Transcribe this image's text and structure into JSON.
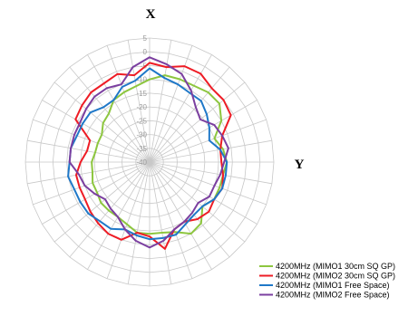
{
  "chart_data": {
    "type": "radar",
    "title": "",
    "axis_labels": {
      "top": "X",
      "right": "Y"
    },
    "r_ticks": [
      5,
      0,
      -5,
      -10,
      -15,
      -20,
      -25,
      -30,
      -35,
      -40
    ],
    "r_range": [
      -40,
      5
    ],
    "angle_step_deg": 10,
    "grid": true,
    "legend_position": "bottom-right",
    "series": [
      {
        "name": "4200MHz (MIMO1 30cm SQ GP)",
        "color": "#8dc63f",
        "values": [
          -10,
          -8,
          -8,
          -8,
          -7,
          -7,
          -10,
          -15,
          -13,
          -12,
          -13,
          -13,
          -13,
          -15,
          -11,
          -10,
          -13,
          -14,
          -14,
          -14,
          -16,
          -17,
          -17,
          -17,
          -18,
          -18,
          -19,
          -19,
          -20,
          -20,
          -20,
          -18,
          -17,
          -14,
          -13,
          -12
        ]
      },
      {
        "name": "4200MHz (MIMO2 30cm SQ GP)",
        "color": "#ee1c25",
        "values": [
          -4,
          -5,
          -3,
          -3,
          -5,
          -5,
          -6,
          -12,
          -14,
          -14,
          -13,
          -12,
          -13,
          -12,
          -13,
          -15,
          -14,
          -8,
          -13,
          -14,
          -10,
          -10,
          -11,
          -12,
          -13,
          -13,
          -13,
          -15,
          -17,
          -17,
          -9,
          -8,
          -7,
          -7,
          -6,
          -8
        ]
      },
      {
        "name": "4200MHz (MIMO1 Free Space)",
        "color": "#1f78c8",
        "values": [
          -6,
          -9,
          -10,
          -11,
          -11,
          -13,
          -15,
          -17,
          -14,
          -12,
          -12,
          -12,
          -13,
          -15,
          -15,
          -14,
          -12,
          -12,
          -12,
          -13,
          -14,
          -12,
          -12,
          -11,
          -11,
          -11,
          -10,
          -11,
          -11,
          -12,
          -12,
          -12,
          -14,
          -14,
          -11,
          -10
        ]
      },
      {
        "name": "4200MHz (MIMO2 Free Space)",
        "color": "#7b3fa0",
        "values": [
          -2,
          -4,
          -6,
          -10,
          -14,
          -16,
          -13,
          -12,
          -11,
          -13,
          -14,
          -15,
          -15,
          -17,
          -16,
          -15,
          -14,
          -11,
          -9,
          -11,
          -14,
          -17,
          -18,
          -19,
          -17,
          -15,
          -14,
          -11,
          -11,
          -11,
          -11,
          -10,
          -9,
          -9,
          -10,
          -5
        ]
      }
    ]
  }
}
